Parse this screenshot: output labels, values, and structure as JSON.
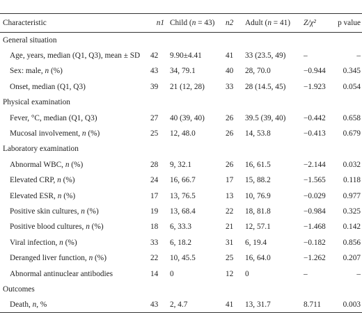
{
  "table": {
    "headers": {
      "characteristic": "Characteristic",
      "n1": "n1",
      "child": "Child (n = 43)",
      "n2": "n2",
      "adult": "Adult (n = 41)",
      "stat": "Z/χ²",
      "p": "p value"
    },
    "rows": [
      {
        "kind": "section",
        "label": "General situation"
      },
      {
        "kind": "item",
        "label": "Age, years, median (Q1, Q3), mean ± SD",
        "n1": "42",
        "child": "9.90±4.41",
        "n2": "41",
        "adult": "33 (23.5, 49)",
        "stat": "–",
        "p": "–"
      },
      {
        "kind": "item",
        "label": "Sex: male, n (%)",
        "n1": "43",
        "child": "34, 79.1",
        "n2": "40",
        "adult": "28, 70.0",
        "stat": "−0.944",
        "p": "0.345"
      },
      {
        "kind": "item",
        "label": "Onset, median (Q1, Q3)",
        "n1": "39",
        "child": "21 (12, 28)",
        "n2": "33",
        "adult": "28 (14.5, 45)",
        "stat": "−1.923",
        "p": "0.054"
      },
      {
        "kind": "section",
        "label": "Physical examination"
      },
      {
        "kind": "item",
        "label": "Fever, °C, median (Q1, Q3)",
        "n1": "27",
        "child": "40 (39, 40)",
        "n2": "26",
        "adult": "39.5 (39, 40)",
        "stat": "−0.442",
        "p": "0.658"
      },
      {
        "kind": "item",
        "label": "Mucosal involvement, n (%)",
        "n1": "25",
        "child": "12, 48.0",
        "n2": "26",
        "adult": "14, 53.8",
        "stat": "−0.413",
        "p": "0.679"
      },
      {
        "kind": "section",
        "label": "Laboratory examination"
      },
      {
        "kind": "item",
        "label": "Abnormal WBC, n (%)",
        "n1": "28",
        "child": "9, 32.1",
        "n2": "26",
        "adult": "16, 61.5",
        "stat": "−2.144",
        "p": "0.032"
      },
      {
        "kind": "item",
        "label": "Elevated CRP, n (%)",
        "n1": "24",
        "child": "16, 66.7",
        "n2": "17",
        "adult": "15, 88.2",
        "stat": "−1.565",
        "p": "0.118"
      },
      {
        "kind": "item",
        "label": "Elevated ESR, n (%)",
        "n1": "17",
        "child": "13, 76.5",
        "n2": "13",
        "adult": "10, 76.9",
        "stat": "−0.029",
        "p": "0.977"
      },
      {
        "kind": "item",
        "label": "Positive skin cultures, n (%)",
        "n1": "19",
        "child": "13, 68.4",
        "n2": "22",
        "adult": "18, 81.8",
        "stat": "−0.984",
        "p": "0.325"
      },
      {
        "kind": "item",
        "label": "Positive blood cultures, n (%)",
        "n1": "18",
        "child": "6, 33.3",
        "n2": "21",
        "adult": "12, 57.1",
        "stat": "−1.468",
        "p": "0.142"
      },
      {
        "kind": "item",
        "label": "Viral infection, n (%)",
        "n1": "33",
        "child": "6, 18.2",
        "n2": "31",
        "adult": "6, 19.4",
        "stat": "−0.182",
        "p": "0.856"
      },
      {
        "kind": "item",
        "label": "Deranged liver function, n (%)",
        "n1": "22",
        "child": "10, 45.5",
        "n2": "25",
        "adult": "16, 64.0",
        "stat": "−1.262",
        "p": "0.207"
      },
      {
        "kind": "item",
        "label": "Abnormal antinuclear antibodies",
        "n1": "14",
        "child": "0",
        "n2": "12",
        "adult": "0",
        "stat": "–",
        "p": "–"
      },
      {
        "kind": "section",
        "label": "Outcomes"
      },
      {
        "kind": "item",
        "label": "Death, n, %",
        "n1": "43",
        "child": "2, 4.7",
        "n2": "41",
        "adult": "13, 31.7",
        "stat": "8.711",
        "p": "0.003"
      }
    ]
  }
}
